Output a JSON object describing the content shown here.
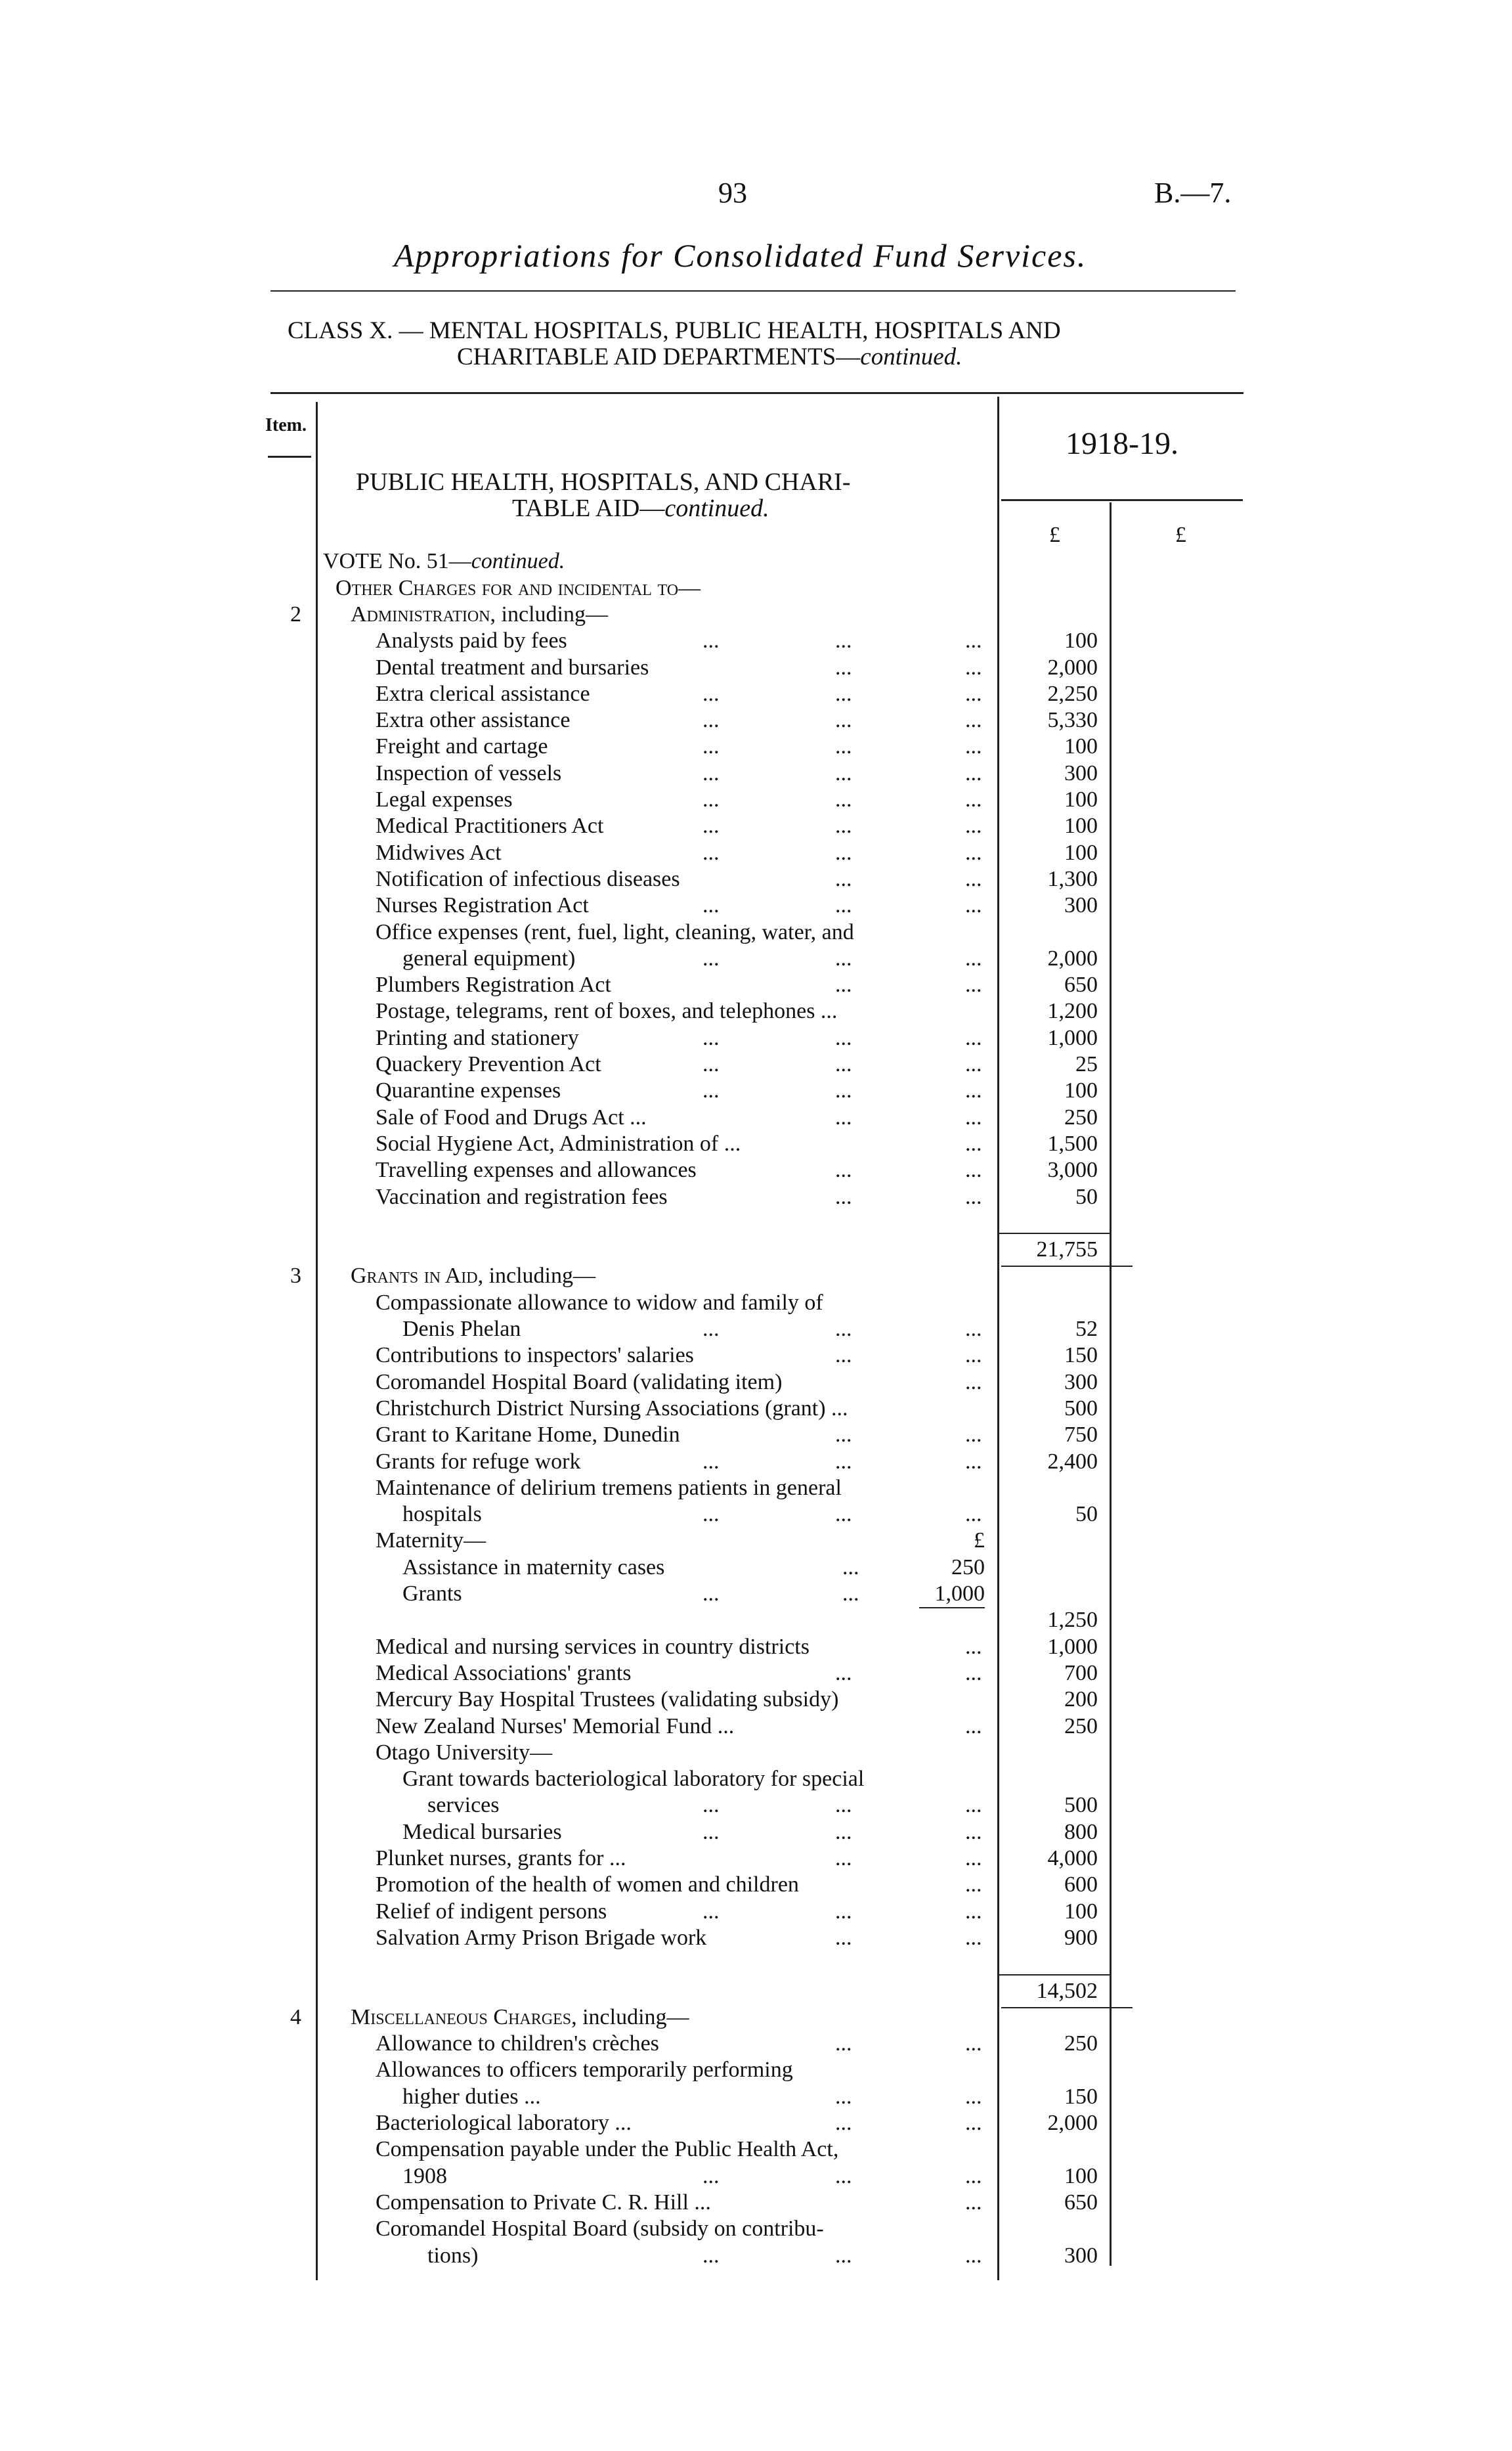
{
  "header": {
    "page_number": "93",
    "doc_ref": "B.—7.",
    "title": "Appropriations for Consolidated Fund Services.",
    "class_line1": "CLASS X. — MENTAL HOSPITALS, PUBLIC HEALTH, HOSPITALS AND",
    "class_line2": "CHARITABLE AID DEPARTMENTS—",
    "class_line2_italic": "continued."
  },
  "table": {
    "item_header": "Item.",
    "year_header": "1918-19.",
    "section_line1": "PUBLIC HEALTH, HOSPITALS, AND CHARI-",
    "section_line2": "TABLE AID—",
    "section_line2_italic": "continued.",
    "currency_col1": "£",
    "currency_col2": "£",
    "rows": [
      {
        "level": 0,
        "text": "VOTE No. 51—",
        "italic": "continued."
      },
      {
        "level": 1,
        "text": "Other Charges for and incidental to—",
        "sc": true
      },
      {
        "item": "2",
        "level": 2,
        "text": "Administration",
        "sc": true,
        "after": ", including—"
      },
      {
        "level": 3,
        "text": "Analysts paid by fees",
        "dots": 3,
        "amount": "100"
      },
      {
        "level": 3,
        "text": "Dental treatment and bursaries",
        "dots": 2,
        "amount": "2,000"
      },
      {
        "level": 3,
        "text": "Extra clerical assistance",
        "dots": 3,
        "amount": "2,250"
      },
      {
        "level": 3,
        "text": "Extra other assistance",
        "dots": 3,
        "amount": "5,330"
      },
      {
        "level": 3,
        "text": "Freight and cartage",
        "dots": 3,
        "amount": "100"
      },
      {
        "level": 3,
        "text": "Inspection of vessels",
        "dots": 3,
        "amount": "300"
      },
      {
        "level": 3,
        "text": "Legal expenses",
        "dots": 3,
        "amount": "100"
      },
      {
        "level": 3,
        "text": "Medical Practitioners Act",
        "dots": 3,
        "amount": "100"
      },
      {
        "level": 3,
        "text": "Midwives Act",
        "dots": 3,
        "amount": "100"
      },
      {
        "level": 3,
        "text": "Notification of infectious diseases",
        "dots": 2,
        "amount": "1,300"
      },
      {
        "level": 3,
        "text": "Nurses Registration Act",
        "dots": 3,
        "amount": "300"
      },
      {
        "level": 3,
        "text": "Office expenses (rent, fuel, light, cleaning, water, and"
      },
      {
        "level": 4,
        "text": "general equipment)",
        "dots": 3,
        "amount": "2,000"
      },
      {
        "level": 3,
        "text": "Plumbers Registration Act",
        "dots": 2,
        "amount": "650"
      },
      {
        "level": 3,
        "text": "Postage, telegrams, rent of boxes, and telephones ...",
        "amount": "1,200"
      },
      {
        "level": 3,
        "text": "Printing and stationery",
        "dots": 3,
        "amount": "1,000"
      },
      {
        "level": 3,
        "text": "Quackery Prevention Act",
        "dots": 3,
        "amount": "25"
      },
      {
        "level": 3,
        "text": "Quarantine expenses",
        "dots": 3,
        "amount": "100"
      },
      {
        "level": 3,
        "text": "Sale of Food and Drugs Act ...",
        "dots": 2,
        "amount": "250"
      },
      {
        "level": 3,
        "text": "Social Hygiene Act, Administration of ...",
        "dots": 1,
        "amount": "1,500"
      },
      {
        "level": 3,
        "text": "Travelling expenses and allowances",
        "dots": 2,
        "amount": "3,000"
      },
      {
        "level": 3,
        "text": "Vaccination and registration fees",
        "dots": 2,
        "amount": "50"
      },
      {
        "level": 3,
        "text": ""
      },
      {
        "level": 3,
        "text": "",
        "amount": "21,755",
        "total": true
      },
      {
        "item": "3",
        "level": 2,
        "text": "Grants in Aid",
        "sc": true,
        "after": ", including—"
      },
      {
        "level": 3,
        "text": "Compassionate allowance to widow and family of"
      },
      {
        "level": 4,
        "text": "Denis Phelan",
        "dots": 3,
        "amount": "52"
      },
      {
        "level": 3,
        "text": "Contributions to inspectors' salaries",
        "dots": 2,
        "amount": "150"
      },
      {
        "level": 3,
        "text": "Coromandel Hospital Board (validating item)",
        "dots": 1,
        "amount": "300"
      },
      {
        "level": 3,
        "text": "Christchurch District Nursing Associations (grant) ...",
        "amount": "500"
      },
      {
        "level": 3,
        "text": "Grant to Karitane Home, Dunedin",
        "dots": 2,
        "amount": "750"
      },
      {
        "level": 3,
        "text": "Grants for refuge work",
        "dots": 3,
        "amount": "2,400"
      },
      {
        "level": 3,
        "text": "Maintenance of delirium tremens patients in general"
      },
      {
        "level": 4,
        "text": "hospitals",
        "dots": 3,
        "amount": "50"
      },
      {
        "level": 3,
        "text": "Maternity—",
        "sub": "£"
      },
      {
        "level": 4,
        "text": "Assistance in maternity cases",
        "dots": 1,
        "sub": "250"
      },
      {
        "level": 4,
        "text": "Grants",
        "dots": 2,
        "sub": "1,000"
      },
      {
        "level": 3,
        "text": "",
        "amount": "1,250",
        "subrule": true
      },
      {
        "level": 3,
        "text": "Medical and nursing services in country districts",
        "dots": 1,
        "amount": "1,000"
      },
      {
        "level": 3,
        "text": "Medical Associations' grants",
        "dots": 2,
        "amount": "700"
      },
      {
        "level": 3,
        "text": "Mercury Bay Hospital Trustees (validating subsidy)",
        "amount": "200"
      },
      {
        "level": 3,
        "text": "New Zealand Nurses' Memorial Fund ...",
        "dots": 1,
        "amount": "250"
      },
      {
        "level": 3,
        "text": "Otago University—"
      },
      {
        "level": 4,
        "text": "Grant towards bacteriological laboratory for special"
      },
      {
        "level": 5,
        "text": "services",
        "dots": 3,
        "amount": "500"
      },
      {
        "level": 4,
        "text": "Medical bursaries",
        "dots": 3,
        "amount": "800"
      },
      {
        "level": 3,
        "text": "Plunket nurses, grants for ...",
        "dots": 2,
        "amount": "4,000"
      },
      {
        "level": 3,
        "text": "Promotion of the health of women and children",
        "dots": 1,
        "amount": "600"
      },
      {
        "level": 3,
        "text": "Relief of indigent persons",
        "dots": 3,
        "amount": "100"
      },
      {
        "level": 3,
        "text": "Salvation Army Prison Brigade work",
        "dots": 2,
        "amount": "900"
      },
      {
        "level": 3,
        "text": ""
      },
      {
        "level": 3,
        "text": "",
        "amount": "14,502",
        "total": true
      },
      {
        "item": "4",
        "level": 2,
        "text": "Miscellaneous Charges",
        "sc": true,
        "after": ", including—"
      },
      {
        "level": 3,
        "text": "Allowance to children's crèches",
        "dots": 2,
        "amount": "250"
      },
      {
        "level": 3,
        "text": "Allowances to officers temporarily performing"
      },
      {
        "level": 4,
        "text": "higher duties ...",
        "dots": 2,
        "amount": "150"
      },
      {
        "level": 3,
        "text": "Bacteriological laboratory ...",
        "dots": 2,
        "amount": "2,000"
      },
      {
        "level": 3,
        "text": "Compensation payable under the Public Health Act,"
      },
      {
        "level": 4,
        "text": "1908",
        "dots": 3,
        "amount": "100"
      },
      {
        "level": 3,
        "text": "Compensation to Private C. R. Hill ...",
        "dots": 1,
        "amount": "650"
      },
      {
        "level": 3,
        "text": "Coromandel Hospital Board (subsidy on contribu-"
      },
      {
        "level": 5,
        "text": "tions)",
        "dots": 3,
        "amount": "300"
      }
    ]
  }
}
